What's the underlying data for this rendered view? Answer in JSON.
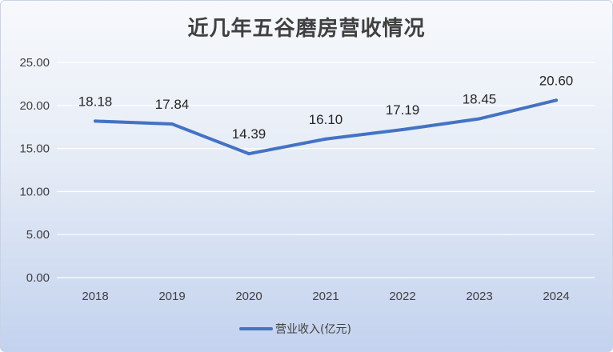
{
  "chart_data": {
    "type": "line",
    "title": "近几年五谷磨房营收情况",
    "categories": [
      "2018",
      "2019",
      "2020",
      "2021",
      "2022",
      "2023",
      "2024"
    ],
    "series": [
      {
        "name": "营业收入(亿元)",
        "values": [
          18.18,
          17.84,
          14.39,
          16.1,
          17.19,
          18.45,
          20.6
        ],
        "labels": [
          "18.18",
          "17.84",
          "14.39",
          "16.10",
          "17.19",
          "18.45",
          "20.60"
        ],
        "color": "#4472c4"
      }
    ],
    "ylim": [
      0,
      25
    ],
    "yticks": [
      "0.00",
      "5.00",
      "10.00",
      "15.00",
      "20.00",
      "25.00"
    ],
    "xlabel": "",
    "ylabel": "",
    "grid": true,
    "legend_position": "bottom"
  }
}
